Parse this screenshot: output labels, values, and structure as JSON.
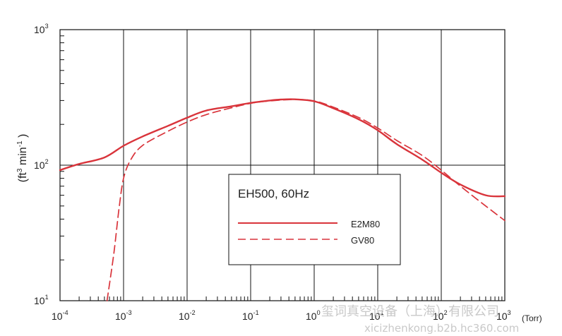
{
  "chart_data": {
    "type": "line",
    "title": "",
    "xscale": "log",
    "yscale": "log",
    "xlim": [
      0.0001,
      1000
    ],
    "ylim": [
      10,
      1000
    ],
    "x_ticks": [
      {
        "base": "10",
        "exp": "-4",
        "value": 0.0001
      },
      {
        "base": "10",
        "exp": "-3",
        "value": 0.001
      },
      {
        "base": "10",
        "exp": "-2",
        "value": 0.01
      },
      {
        "base": "10",
        "exp": "-1",
        "value": 0.1
      },
      {
        "base": "10",
        "exp": "0",
        "value": 1
      },
      {
        "base": "10",
        "exp": "1",
        "value": 10
      },
      {
        "base": "10",
        "exp": "2",
        "value": 100
      },
      {
        "base": "10",
        "exp": "3",
        "value": 1000
      }
    ],
    "y_ticks": [
      {
        "base": "10",
        "exp": "1",
        "value": 10
      },
      {
        "base": "10",
        "exp": "2",
        "value": 100
      },
      {
        "base": "10",
        "exp": "3",
        "value": 1000
      }
    ],
    "xunit": "(Torr)",
    "ylabel": {
      "open": "(ft",
      "exp1": "3",
      "mid": " min",
      "exp2": "-1",
      "close": " )"
    },
    "grid": "major",
    "legend": {
      "title": "EH500, 60Hz",
      "placement": "center",
      "entries": [
        {
          "label": "E2M80",
          "style": "solid"
        },
        {
          "label": "GV80",
          "style": "dashed"
        }
      ]
    },
    "color": "#d9343b",
    "series": [
      {
        "name": "E2M80",
        "style": "solid",
        "points": [
          [
            0.0001,
            92
          ],
          [
            0.0002,
            102
          ],
          [
            0.0005,
            114
          ],
          [
            0.001,
            139
          ],
          [
            0.002,
            163
          ],
          [
            0.005,
            195
          ],
          [
            0.01,
            224
          ],
          [
            0.02,
            253
          ],
          [
            0.05,
            272
          ],
          [
            0.1,
            288
          ],
          [
            0.2,
            300
          ],
          [
            0.3,
            305
          ],
          [
            0.5,
            306
          ],
          [
            1,
            296
          ],
          [
            2,
            263
          ],
          [
            5,
            218
          ],
          [
            10,
            181
          ],
          [
            20,
            143
          ],
          [
            50,
            110
          ],
          [
            100,
            88
          ],
          [
            200,
            72
          ],
          [
            500,
            60
          ],
          [
            1000,
            59
          ]
        ]
      },
      {
        "name": "GV80",
        "style": "dashed",
        "points": [
          [
            0.00055,
            10
          ],
          [
            0.0007,
            22
          ],
          [
            0.00085,
            48
          ],
          [
            0.001,
            80
          ],
          [
            0.0013,
            110
          ],
          [
            0.002,
            140
          ],
          [
            0.005,
            178
          ],
          [
            0.01,
            208
          ],
          [
            0.02,
            236
          ],
          [
            0.05,
            265
          ],
          [
            0.1,
            286
          ],
          [
            0.2,
            298
          ],
          [
            0.5,
            305
          ],
          [
            1,
            298
          ],
          [
            2,
            268
          ],
          [
            5,
            225
          ],
          [
            10,
            188
          ],
          [
            20,
            152
          ],
          [
            50,
            118
          ],
          [
            100,
            92
          ],
          [
            200,
            70
          ],
          [
            500,
            50
          ],
          [
            1000,
            39
          ]
        ]
      }
    ]
  },
  "watermark": {
    "line1": "玺词真空设备（上海）有限公司",
    "line2": "xicizhenkong.b2b.hc360.com"
  }
}
